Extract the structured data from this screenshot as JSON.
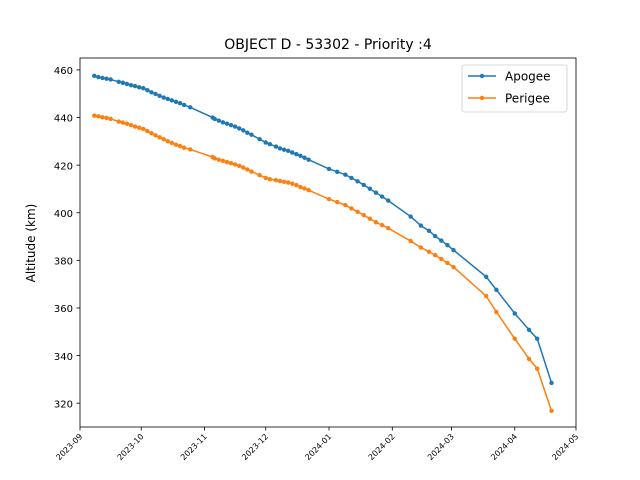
{
  "chart_data": {
    "type": "line",
    "title": "OBJECT D - 53302 - Priority :4",
    "xlabel": "",
    "ylabel": "Altitude (km)",
    "x_axis_type": "date",
    "xlim": [
      "2023-09-01",
      "2024-05-01"
    ],
    "ylim": [
      310,
      465
    ],
    "yticks": [
      320,
      340,
      360,
      380,
      400,
      420,
      440,
      460
    ],
    "xticks": [
      "2023-09",
      "2023-10",
      "2023-11",
      "2023-12",
      "2024-01",
      "2024-02",
      "2024-03",
      "2024-04",
      "2024-05"
    ],
    "xtick_label_rotation": "45 degrees",
    "grid": false,
    "legend": "top-right",
    "series": [
      {
        "name": "Apogee",
        "color": "#1f77b4",
        "points": [
          [
            "2023-09-08",
            457.5
          ],
          [
            "2023-09-10",
            457.0
          ],
          [
            "2023-09-12",
            456.6
          ],
          [
            "2023-09-14",
            456.3
          ],
          [
            "2023-09-16",
            456.0
          ],
          [
            "2023-09-20",
            455.0
          ],
          [
            "2023-09-22",
            454.6
          ],
          [
            "2023-09-24",
            454.1
          ],
          [
            "2023-09-26",
            453.6
          ],
          [
            "2023-09-28",
            453.2
          ],
          [
            "2023-09-30",
            452.7
          ],
          [
            "2023-10-02",
            452.3
          ],
          [
            "2023-10-04",
            451.5
          ],
          [
            "2023-10-06",
            450.6
          ],
          [
            "2023-10-08",
            449.9
          ],
          [
            "2023-10-10",
            449.1
          ],
          [
            "2023-10-12",
            448.4
          ],
          [
            "2023-10-14",
            447.8
          ],
          [
            "2023-10-16",
            447.2
          ],
          [
            "2023-10-18",
            446.6
          ],
          [
            "2023-10-20",
            446.0
          ],
          [
            "2023-10-22",
            445.3
          ],
          [
            "2023-10-25",
            444.3
          ],
          [
            "2023-11-05",
            440.0
          ],
          [
            "2023-11-06",
            439.4
          ],
          [
            "2023-11-08",
            438.7
          ],
          [
            "2023-11-10",
            438.0
          ],
          [
            "2023-11-12",
            437.4
          ],
          [
            "2023-11-14",
            436.8
          ],
          [
            "2023-11-16",
            436.2
          ],
          [
            "2023-11-18",
            435.4
          ],
          [
            "2023-11-20",
            434.6
          ],
          [
            "2023-11-22",
            433.6
          ],
          [
            "2023-11-24",
            432.8
          ],
          [
            "2023-11-28",
            430.9
          ],
          [
            "2023-12-01",
            429.5
          ],
          [
            "2023-12-03",
            428.8
          ],
          [
            "2023-12-06",
            427.8
          ],
          [
            "2023-12-08",
            427.0
          ],
          [
            "2023-12-10",
            426.5
          ],
          [
            "2023-12-12",
            426.0
          ],
          [
            "2023-12-14",
            425.3
          ],
          [
            "2023-12-16",
            424.6
          ],
          [
            "2023-12-18",
            423.9
          ],
          [
            "2023-12-20",
            423.1
          ],
          [
            "2023-12-22",
            422.3
          ],
          [
            "2024-01-01",
            418.4
          ],
          [
            "2024-01-05",
            417.2
          ],
          [
            "2024-01-09",
            416.0
          ],
          [
            "2024-01-12",
            414.6
          ],
          [
            "2024-01-15",
            413.2
          ],
          [
            "2024-01-18",
            411.7
          ],
          [
            "2024-01-21",
            410.1
          ],
          [
            "2024-01-24",
            408.4
          ],
          [
            "2024-01-27",
            406.8
          ],
          [
            "2024-01-30",
            405.1
          ],
          [
            "2024-02-10",
            398.4
          ],
          [
            "2024-02-15",
            394.6
          ],
          [
            "2024-02-19",
            392.4
          ],
          [
            "2024-02-22",
            390.2
          ],
          [
            "2024-02-25",
            388.3
          ],
          [
            "2024-02-28",
            386.4
          ],
          [
            "2024-03-02",
            384.3
          ],
          [
            "2024-03-18",
            373.1
          ],
          [
            "2024-03-23",
            367.6
          ],
          [
            "2024-04-01",
            357.7
          ],
          [
            "2024-04-08",
            350.8
          ],
          [
            "2024-04-12",
            347.1
          ],
          [
            "2024-04-19",
            328.5
          ]
        ]
      },
      {
        "name": "Perigee",
        "color": "#ff7f0e",
        "points": [
          [
            "2023-09-08",
            440.8
          ],
          [
            "2023-09-10",
            440.5
          ],
          [
            "2023-09-12",
            440.1
          ],
          [
            "2023-09-14",
            439.8
          ],
          [
            "2023-09-16",
            439.4
          ],
          [
            "2023-09-20",
            438.3
          ],
          [
            "2023-09-22",
            437.9
          ],
          [
            "2023-09-24",
            437.4
          ],
          [
            "2023-09-26",
            436.8
          ],
          [
            "2023-09-28",
            436.2
          ],
          [
            "2023-09-30",
            435.7
          ],
          [
            "2023-10-02",
            435.2
          ],
          [
            "2023-10-04",
            434.3
          ],
          [
            "2023-10-06",
            433.4
          ],
          [
            "2023-10-08",
            432.5
          ],
          [
            "2023-10-10",
            431.7
          ],
          [
            "2023-10-12",
            430.9
          ],
          [
            "2023-10-14",
            430.0
          ],
          [
            "2023-10-16",
            429.3
          ],
          [
            "2023-10-18",
            428.6
          ],
          [
            "2023-10-20",
            428.0
          ],
          [
            "2023-10-22",
            427.3
          ],
          [
            "2023-10-25",
            426.6
          ],
          [
            "2023-11-05",
            423.4
          ],
          [
            "2023-11-06",
            422.8
          ],
          [
            "2023-11-08",
            422.3
          ],
          [
            "2023-11-10",
            421.8
          ],
          [
            "2023-11-12",
            421.3
          ],
          [
            "2023-11-14",
            420.8
          ],
          [
            "2023-11-16",
            420.3
          ],
          [
            "2023-11-18",
            419.7
          ],
          [
            "2023-11-20",
            419.0
          ],
          [
            "2023-11-22",
            418.2
          ],
          [
            "2023-11-24",
            417.3
          ],
          [
            "2023-11-28",
            415.8
          ],
          [
            "2023-12-01",
            414.6
          ],
          [
            "2023-12-03",
            414.1
          ],
          [
            "2023-12-06",
            413.7
          ],
          [
            "2023-12-08",
            413.3
          ],
          [
            "2023-12-10",
            413.0
          ],
          [
            "2023-12-12",
            412.7
          ],
          [
            "2023-12-14",
            412.2
          ],
          [
            "2023-12-16",
            411.6
          ],
          [
            "2023-12-18",
            410.8
          ],
          [
            "2023-12-20",
            410.2
          ],
          [
            "2023-12-22",
            409.5
          ],
          [
            "2024-01-01",
            405.7
          ],
          [
            "2024-01-05",
            404.5
          ],
          [
            "2024-01-09",
            403.2
          ],
          [
            "2024-01-12",
            401.8
          ],
          [
            "2024-01-15",
            400.4
          ],
          [
            "2024-01-18",
            399.0
          ],
          [
            "2024-01-21",
            397.5
          ],
          [
            "2024-01-24",
            396.0
          ],
          [
            "2024-01-27",
            394.8
          ],
          [
            "2024-01-30",
            393.5
          ],
          [
            "2024-02-10",
            388.1
          ],
          [
            "2024-02-15",
            385.4
          ],
          [
            "2024-02-19",
            383.6
          ],
          [
            "2024-02-22",
            382.2
          ],
          [
            "2024-02-25",
            380.6
          ],
          [
            "2024-02-28",
            378.9
          ],
          [
            "2024-03-02",
            377.2
          ],
          [
            "2024-03-18",
            365.0
          ],
          [
            "2024-03-23",
            358.3
          ],
          [
            "2024-04-01",
            347.1
          ],
          [
            "2024-04-08",
            338.6
          ],
          [
            "2024-04-12",
            334.5
          ],
          [
            "2024-04-19",
            316.8
          ]
        ]
      }
    ]
  }
}
